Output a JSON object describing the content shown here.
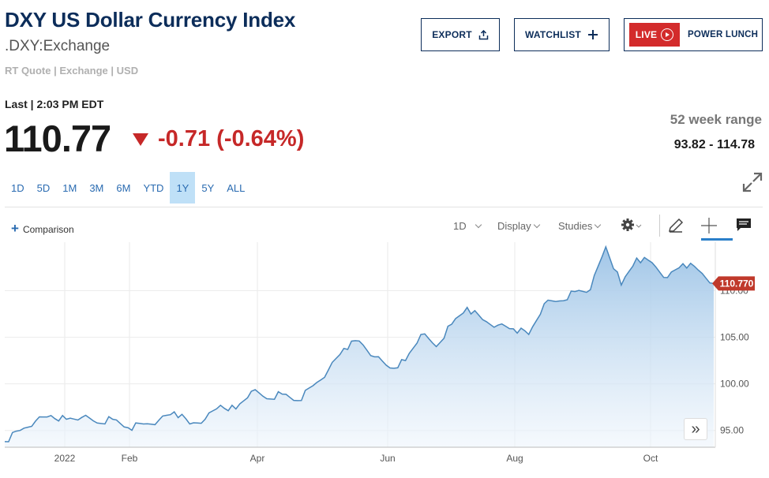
{
  "header": {
    "title": "DXY US Dollar Currency Index",
    "symbol": ".DXY:Exchange",
    "quote_meta": "RT Quote | Exchange | USD",
    "export_label": "EXPORT",
    "watchlist_label": "WATCHLIST",
    "live_label": "LIVE",
    "power_lunch_label": "POWER LUNCH"
  },
  "quote": {
    "last_label": "Last | 2:03 PM EDT",
    "price": "110.77",
    "change": "-0.71 (-0.64%)",
    "change_color": "#c62828",
    "range_label": "52 week range",
    "range_value": "93.82 - 114.78"
  },
  "time_ranges": [
    {
      "label": "1D",
      "active": false
    },
    {
      "label": "5D",
      "active": false
    },
    {
      "label": "1M",
      "active": false
    },
    {
      "label": "3M",
      "active": false
    },
    {
      "label": "6M",
      "active": false
    },
    {
      "label": "YTD",
      "active": false
    },
    {
      "label": "1Y",
      "active": true
    },
    {
      "label": "5Y",
      "active": false
    },
    {
      "label": "ALL",
      "active": false
    }
  ],
  "toolbar": {
    "comparison_label": "Comparison",
    "interval_label": "1D",
    "display_label": "Display",
    "studies_label": "Studies"
  },
  "icons": {
    "export": "share-upload-icon",
    "watchlist": "plus-icon",
    "live": "play-circle-icon",
    "expand": "expand-icon",
    "settings": "gear-icon",
    "draw": "pencil-icon",
    "crosshair": "crosshair-icon",
    "comment": "comment-icon",
    "scroll": "double-chevron-right-icon"
  },
  "colors": {
    "brand_navy": "#0c2d5a",
    "accent_blue": "#2a6bb1",
    "live_red": "#d32b2b",
    "active_range_bg": "#bfe0f7",
    "line": "#4a88bd",
    "price_tag": "#c0392b"
  },
  "chart_data": {
    "type": "area",
    "title": "",
    "xlabel": "",
    "ylabel": "",
    "ylim": [
      93.2,
      115.2
    ],
    "x_ticks": [
      "2022",
      "Feb",
      "Apr",
      "Jun",
      "Aug",
      "Oct"
    ],
    "y_ticks": [
      "95.00",
      "100.00",
      "105.00",
      "110.00"
    ],
    "y_tick_values": [
      95,
      100,
      105,
      110
    ],
    "last_value_label": "110.770",
    "last_value": 110.77,
    "grid": true,
    "series": [
      {
        "x": [
          "Oct 2021",
          "Oct 2021",
          "Nov 2021",
          "Nov 2021",
          "Nov 2021",
          "Nov 2021",
          "Dec 2021",
          "Dec 2021",
          "Dec 2021",
          "Jan 2022",
          "Jan 2022",
          "Jan 2022",
          "Jan 2022",
          "Feb 2022",
          "Feb 2022",
          "Feb 2022",
          "Mar 2022",
          "Mar 2022",
          "Mar 2022",
          "Mar 2022",
          "Apr 2022",
          "Apr 2022",
          "Apr 2022",
          "May 2022",
          "May 2022",
          "May 2022",
          "May 2022",
          "Jun 2022",
          "Jun 2022",
          "Jun 2022",
          "Jun 2022",
          "Jul 2022",
          "Jul 2022",
          "Jul 2022",
          "Jul 2022",
          "Aug 2022",
          "Aug 2022",
          "Aug 2022",
          "Aug 2022",
          "Sep 2022",
          "Sep 2022",
          "Sep 2022",
          "Sep 2022",
          "Oct 2022",
          "Oct 2022",
          "Oct 2022",
          "Oct 2022"
        ],
        "values": [
          93.8,
          95.0,
          96.0,
          96.6,
          96.2,
          96.4,
          95.8,
          96.2,
          95.3,
          95.7,
          96.1,
          97.0,
          95.7,
          96.2,
          97.7,
          97.3,
          99.2,
          98.4,
          98.9,
          98.2,
          99.8,
          101.5,
          103.8,
          104.6,
          102.9,
          101.7,
          102.5,
          105.3,
          104.0,
          106.4,
          108.2,
          106.9,
          106.3,
          105.9,
          105.3,
          108.6,
          108.9,
          109.9,
          110.1,
          114.7,
          110.6,
          113.5,
          113.0,
          111.4,
          112.9,
          112.2,
          110.77
        ]
      }
    ]
  }
}
